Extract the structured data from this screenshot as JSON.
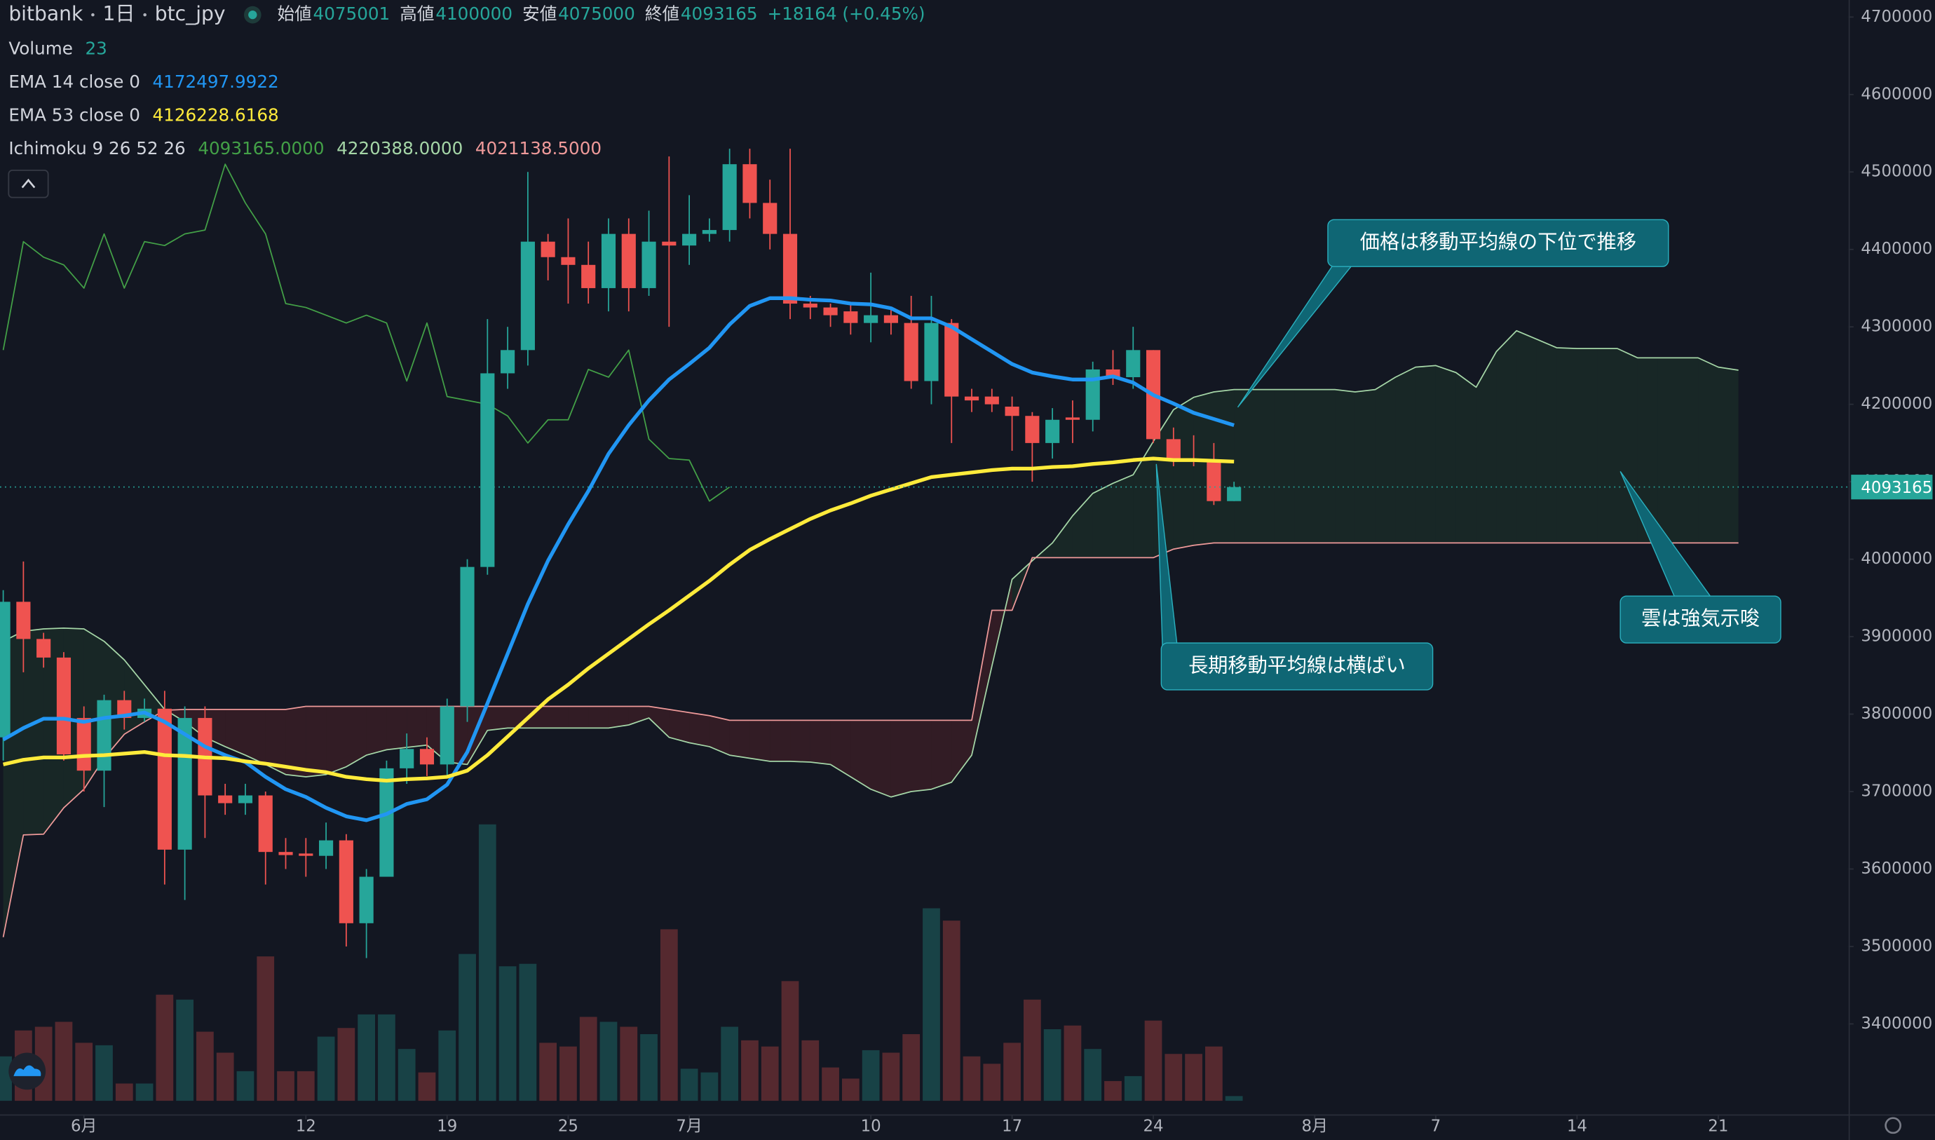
{
  "chart_data": {
    "type": "candlestick",
    "header": {
      "exchange": "bitbank",
      "interval": "1日",
      "symbol": "btc_jpy",
      "fields": [
        {
          "label": "始値"
        },
        {
          "label": "高値"
        },
        {
          "label": "安値"
        },
        {
          "label": "終値"
        }
      ],
      "change": "+18164 (+0.45%)"
    },
    "up_color": "#26a69a",
    "down_color": "#ef5350",
    "xlim": [
      -0.16,
      91.46
    ],
    "xticks": [
      {
        "value": 4,
        "label": "6月"
      },
      {
        "value": 15,
        "label": "12"
      },
      {
        "value": 22,
        "label": "19"
      },
      {
        "value": 28,
        "label": "25"
      },
      {
        "value": 34,
        "label": "7月"
      },
      {
        "value": 43,
        "label": "10"
      },
      {
        "value": 50,
        "label": "17"
      },
      {
        "value": 57,
        "label": "24"
      },
      {
        "value": 65,
        "label": "8月"
      },
      {
        "value": 71,
        "label": "7"
      },
      {
        "value": 78,
        "label": "14"
      },
      {
        "value": 85,
        "label": "21"
      }
    ],
    "ylim": [
      3280000,
      4722000
    ],
    "yticks": [
      3400000,
      3500000,
      3600000,
      3700000,
      3800000,
      3900000,
      4000000,
      4100000,
      4200000,
      4300000,
      4400000,
      4500000,
      4600000,
      4700000
    ],
    "open": [
      3770000,
      3945000,
      3897000,
      3873000,
      3795000,
      3727000,
      3818000,
      3795000,
      3807000,
      3625000,
      3795000,
      3695000,
      3685000,
      3695000,
      3622000,
      3620000,
      3617000,
      3637000,
      3530000,
      3590000,
      3730000,
      3755000,
      3735000,
      3810000,
      3990000,
      4240000,
      4270000,
      4410000,
      4390000,
      4380000,
      4350000,
      4420000,
      4350000,
      4410000,
      4405000,
      4420000,
      4425000,
      4510000,
      4460000,
      4420000,
      4330000,
      4325000,
      4320000,
      4305000,
      4315000,
      4305000,
      4230000,
      4305000,
      4210000,
      4210000,
      4197000,
      4185000,
      4150000,
      4183000,
      4180000,
      4245000,
      4235000,
      4270000,
      4155000,
      4130000,
      4128000,
      4075001
    ],
    "high": [
      3960000,
      3997000,
      3905000,
      3880000,
      3810000,
      3825000,
      3830000,
      3820000,
      3830000,
      3810000,
      3810000,
      3710000,
      3710000,
      3700000,
      3640000,
      3640000,
      3660000,
      3645000,
      3600000,
      3740000,
      3775000,
      3770000,
      3820000,
      4000000,
      4310000,
      4300000,
      4500000,
      4420000,
      4440000,
      4410000,
      4440000,
      4440000,
      4450000,
      4520000,
      4470000,
      4440000,
      4530000,
      4530000,
      4490000,
      4530000,
      4340000,
      4330000,
      4330000,
      4370000,
      4325000,
      4340000,
      4340000,
      4310000,
      4220000,
      4220000,
      4210000,
      4190000,
      4195000,
      4205000,
      4255000,
      4270000,
      4300000,
      4270000,
      4170000,
      4160000,
      4150000,
      4100000
    ],
    "low": [
      3740000,
      3854000,
      3860000,
      3740000,
      3700000,
      3680000,
      3780000,
      3790000,
      3580000,
      3560000,
      3640000,
      3670000,
      3670000,
      3580000,
      3600000,
      3590000,
      3600000,
      3500000,
      3485000,
      3590000,
      3710000,
      3720000,
      3720000,
      3790000,
      3980000,
      4220000,
      4250000,
      4360000,
      4330000,
      4330000,
      4320000,
      4320000,
      4340000,
      4300000,
      4380000,
      4410000,
      4410000,
      4440000,
      4400000,
      4310000,
      4310000,
      4300000,
      4290000,
      4280000,
      4290000,
      4220000,
      4200000,
      4150000,
      4190000,
      4190000,
      4140000,
      4100000,
      4130000,
      4150000,
      4165000,
      4225000,
      4220000,
      4150000,
      4120000,
      4120000,
      4070000,
      4075000
    ],
    "close": [
      3945000,
      3897000,
      3873000,
      3748000,
      3727000,
      3818000,
      3795000,
      3807000,
      3625000,
      3795000,
      3695000,
      3685000,
      3695000,
      3622000,
      3618000,
      3617000,
      3637000,
      3530000,
      3590000,
      3730000,
      3755000,
      3735000,
      3810000,
      3990000,
      4240000,
      4270000,
      4410000,
      4390000,
      4380000,
      4350000,
      4420000,
      4350000,
      4410000,
      4405000,
      4420000,
      4425000,
      4510000,
      4460000,
      4420000,
      4330000,
      4325000,
      4315000,
      4305000,
      4315000,
      4305000,
      4230000,
      4305000,
      4210000,
      4205000,
      4200000,
      4185000,
      4150000,
      4180000,
      4180000,
      4245000,
      4235000,
      4270000,
      4155000,
      4130000,
      4128000,
      4075000,
      4093165
    ],
    "volume": {
      "name": "Volume",
      "ylim": [
        0,
        1500
      ],
      "values": [
        216,
        342,
        360,
        384,
        282,
        270,
        84,
        84,
        516,
        492,
        336,
        234,
        144,
        702,
        144,
        144,
        312,
        354,
        420,
        420,
        252,
        138,
        342,
        714,
        1344,
        654,
        666,
        282,
        264,
        408,
        384,
        360,
        324,
        834,
        156,
        138,
        360,
        294,
        264,
        582,
        294,
        162,
        108,
        246,
        234,
        324,
        936,
        876,
        216,
        180,
        282,
        492,
        348,
        366,
        252,
        96,
        120,
        390,
        228,
        228,
        264,
        23
      ]
    },
    "ema": [
      {
        "name": "EMA 14 close 0",
        "legend_value": "4172497.9922",
        "color": "#2196f3",
        "values": [
          3767000,
          3782000,
          3794000,
          3794000,
          3790000,
          3795000,
          3798000,
          3802000,
          3790000,
          3774000,
          3758000,
          3747000,
          3738000,
          3719000,
          3703000,
          3693000,
          3679000,
          3668000,
          3663000,
          3671000,
          3684000,
          3690000,
          3709000,
          3751000,
          3814000,
          3878000,
          3942000,
          3998000,
          4045000,
          4088000,
          4136000,
          4173000,
          4205000,
          4232000,
          4252000,
          4273000,
          4303000,
          4327000,
          4337000,
          4337000,
          4335000,
          4334000,
          4330000,
          4329000,
          4324000,
          4311000,
          4311000,
          4300000,
          4284000,
          4268000,
          4252000,
          4241000,
          4236000,
          4232000,
          4232000,
          4236000,
          4228000,
          4212000,
          4201000,
          4189000,
          4181000,
          4173000
        ]
      },
      {
        "name": "EMA 53 close 0",
        "legend_value": "4126228.6168",
        "color": "#ffeb3b",
        "values": [
          3735000,
          3741000,
          3744000,
          3744000,
          3746000,
          3747000,
          3749000,
          3751000,
          3747000,
          3746000,
          3744000,
          3743000,
          3739000,
          3736000,
          3732000,
          3728000,
          3725000,
          3719000,
          3716000,
          3714000,
          3716000,
          3717000,
          3719000,
          3727000,
          3747000,
          3771000,
          3795000,
          3819000,
          3838000,
          3859000,
          3878000,
          3897000,
          3916000,
          3934000,
          3953000,
          3972000,
          3993000,
          4012000,
          4026000,
          4039000,
          4052000,
          4063000,
          4072000,
          4082000,
          4090000,
          4098000,
          4106000,
          4109000,
          4112000,
          4115000,
          4117000,
          4117000,
          4119000,
          4120000,
          4123000,
          4125000,
          4128000,
          4130000,
          4128000,
          4128000,
          4127000,
          4126000
        ]
      }
    ],
    "ichimoku": {
      "name": "Ichimoku 9 26 52 26",
      "legend_values": [
        "4093165.0000",
        "4220388.0000",
        "4021138.5000"
      ],
      "lagging": {
        "color": "#43a047",
        "values": [
          4270000,
          4410000,
          4390000,
          4380000,
          4350000,
          4420000,
          4350000,
          4410000,
          4405000,
          4420000,
          4425000,
          4510000,
          4460000,
          4420000,
          4330000,
          4325000,
          4315000,
          4305000,
          4315000,
          4305000,
          4230000,
          4305000,
          4210000,
          4205000,
          4200000,
          4185000,
          4150000,
          4180000,
          4180000,
          4245000,
          4235000,
          4270000,
          4155000,
          4130000,
          4128000,
          4075000,
          4093165
        ]
      },
      "span_a": {
        "color": "#a5d6a7",
        "values": [
          3894000,
          3907000,
          3910000,
          3911000,
          3910000,
          3894000,
          3870000,
          3838000,
          3806000,
          3790000,
          3770000,
          3758000,
          3747000,
          3735000,
          3722000,
          3719000,
          3722000,
          3732000,
          3747000,
          3754000,
          3757000,
          3760000,
          3738000,
          3735000,
          3779000,
          3782000,
          3782000,
          3782000,
          3782000,
          3782000,
          3782000,
          3786000,
          3795000,
          3770000,
          3763000,
          3758000,
          3747000,
          3743000,
          3739000,
          3739000,
          3738000,
          3735000,
          3719000,
          3703000,
          3693000,
          3700000,
          3703000,
          3712000,
          3747000,
          3862000,
          3974000,
          3998000,
          4021000,
          4056000,
          4085000,
          4098000,
          4109000,
          4152000,
          4193000,
          4209000,
          4216000,
          4219000,
          4219000,
          4219000,
          4219000,
          4219000,
          4219000,
          4216000,
          4219000,
          4235000,
          4248000,
          4250000,
          4241000,
          4222000,
          4268000,
          4295000,
          4284000,
          4273000,
          4272000,
          4272000,
          4272000,
          4260000,
          4260000,
          4260000,
          4260000,
          4248000,
          4244000
        ]
      },
      "span_b": {
        "color": "#ef9a9a",
        "values": [
          3512000,
          3644000,
          3645000,
          3679000,
          3703000,
          3743000,
          3774000,
          3790000,
          3805000,
          3806000,
          3806000,
          3806000,
          3806000,
          3806000,
          3806000,
          3810000,
          3810000,
          3810000,
          3810000,
          3810000,
          3810000,
          3810000,
          3810000,
          3810000,
          3810000,
          3810000,
          3810000,
          3810000,
          3810000,
          3810000,
          3810000,
          3810000,
          3810000,
          3806000,
          3802000,
          3798000,
          3792000,
          3792000,
          3792000,
          3792000,
          3792000,
          3792000,
          3792000,
          3792000,
          3792000,
          3792000,
          3792000,
          3792000,
          3792000,
          3934000,
          3934000,
          4002000,
          4002000,
          4002000,
          4002000,
          4002000,
          4002000,
          4002000,
          4013000,
          4018000,
          4021000,
          4021000,
          4021000,
          4021000,
          4021000,
          4021000,
          4021000,
          4021000,
          4021000,
          4021000,
          4021000,
          4021000,
          4021000,
          4021000,
          4021000,
          4021000,
          4021000,
          4021000,
          4021000,
          4021000,
          4021000,
          4021000,
          4021000,
          4021000,
          4021000,
          4021000,
          4021000
        ]
      }
    },
    "annotations": [
      {
        "text": "価格は移動平均線の下位で推移"
      },
      {
        "text": "雲は強気示唆"
      },
      {
        "text": "長期移動平均線は横ばい"
      }
    ]
  }
}
